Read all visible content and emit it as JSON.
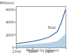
{
  "chart_data": {
    "type": "line",
    "y_label": "Population (Millions)",
    "x": [
      1700,
      1750,
      1800,
      1850,
      1900,
      1950,
      1975,
      2000
    ],
    "series": [
      {
        "name": "Total",
        "color": "#3f6ea8",
        "type": "line",
        "values": [
          600,
          790,
          980,
          1260,
          1650,
          2520,
          4070,
          6070
        ]
      },
      {
        "name": "Method by farmers",
        "color": "#b7d0e6",
        "type": "area",
        "values": [
          300,
          380,
          460,
          560,
          700,
          1000,
          1500,
          2100
        ]
      }
    ],
    "xlim": [
      1700,
      2000
    ],
    "xticks": [
      1700,
      1800,
      1900,
      2000
    ],
    "ylim": [
      0,
      6500
    ],
    "yticks": [
      0,
      2000,
      4000,
      6000
    ],
    "grid": false
  }
}
